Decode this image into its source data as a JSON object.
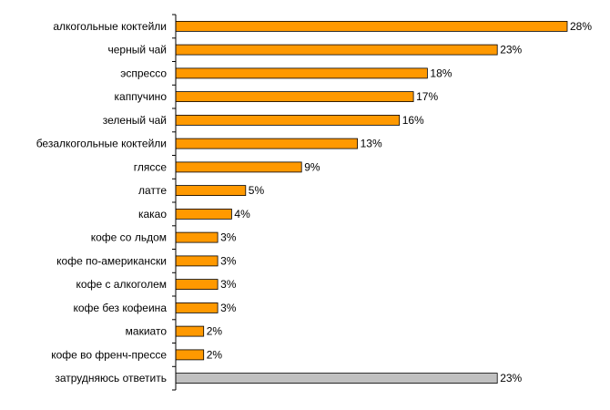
{
  "chart_data": {
    "type": "bar",
    "orientation": "horizontal",
    "title": "",
    "xlabel": "",
    "ylabel": "",
    "value_suffix": "%",
    "xlim": [
      0,
      30
    ],
    "grid": false,
    "legend": "none",
    "categories": [
      "алкогольные коктейли",
      "черный чай",
      "эспрессо",
      "каппучино",
      "зеленый чай",
      "безалкогольные коктейли",
      "гляссе",
      "латте",
      "какао",
      "кофе со льдом",
      "кофе по-американски",
      "кофе с алкоголем",
      "кофе без кофеина",
      "макиато",
      "кофе во френч-прессе",
      "затрудняюсь ответить"
    ],
    "values": [
      28,
      23,
      18,
      17,
      16,
      13,
      9,
      5,
      4,
      3,
      3,
      3,
      3,
      2,
      2,
      23
    ],
    "data_labels": [
      "28%",
      "23%",
      "18%",
      "17%",
      "16%",
      "13%",
      "9%",
      "5%",
      "4%",
      "3%",
      "3%",
      "3%",
      "3%",
      "2%",
      "2%",
      "23%"
    ],
    "colors": {
      "bar": "#ff9900",
      "bar_last": "#c0c0c0",
      "bar_border": "#000000",
      "axis": "#000000"
    }
  }
}
